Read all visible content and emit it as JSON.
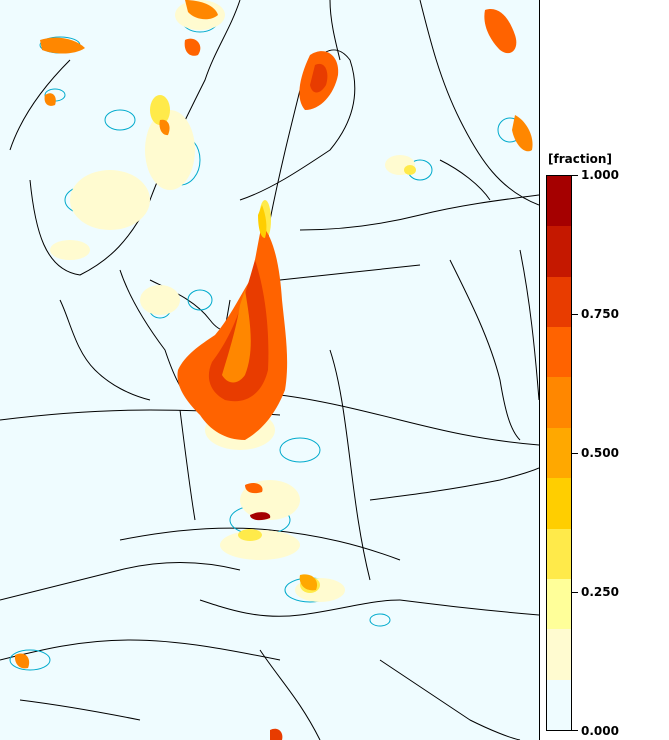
{
  "legend": {
    "title": "[fraction]",
    "min": 0.0,
    "max": 1.0,
    "tick_labels": [
      "1.000",
      "0.750",
      "0.500",
      "0.250",
      "0.000"
    ],
    "tick_values": [
      1.0,
      0.75,
      0.5,
      0.25,
      0.0
    ],
    "colors": [
      "#effcff",
      "#fffbd0",
      "#ffff99",
      "#ffea4a",
      "#ffce00",
      "#ffa800",
      "#ff8700",
      "#ff6300",
      "#e83c00",
      "#c51800",
      "#a50000"
    ]
  },
  "palette": {
    "land_background": "#effcff",
    "coastline": "#000000",
    "contour_line": "#00aacc"
  }
}
